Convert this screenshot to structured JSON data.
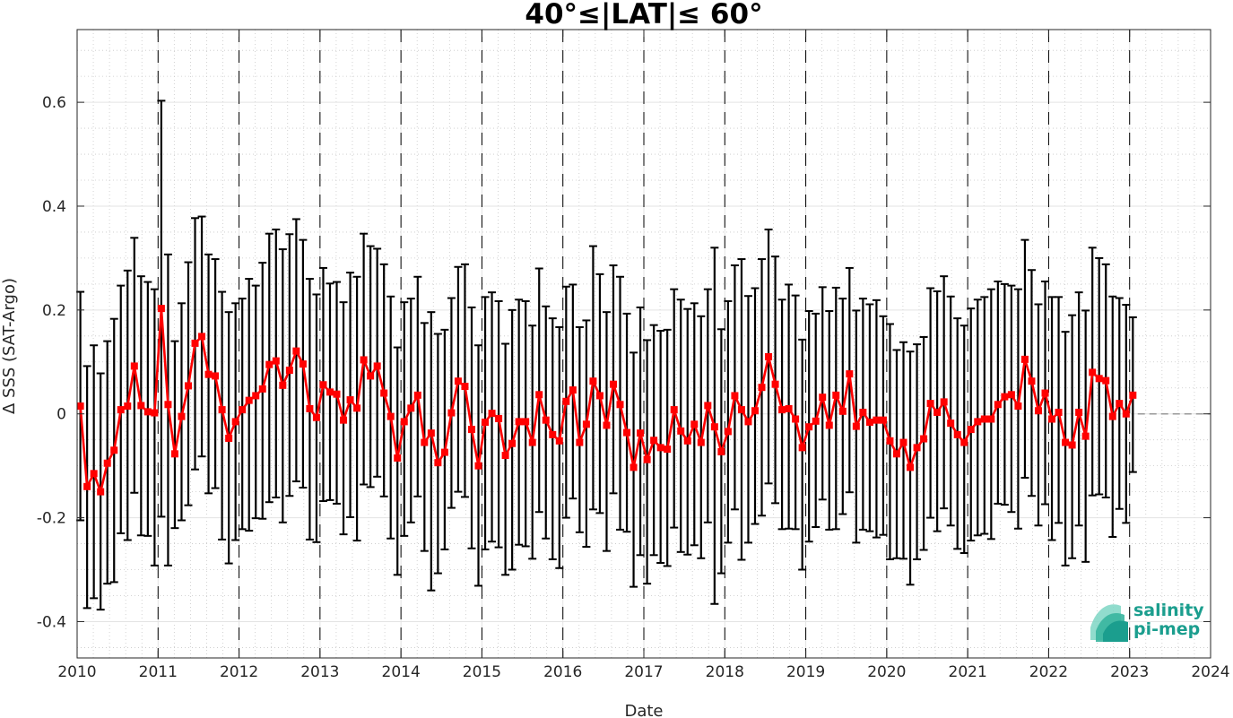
{
  "chart_data": {
    "type": "line",
    "title": "40°≤|LAT|≤ 60°",
    "xlabel": "Date",
    "ylabel": "Δ SSS (SAT-Argo)",
    "xlim": [
      2010,
      2024
    ],
    "ylim": [
      -0.47,
      0.74
    ],
    "x_ticks": [
      2010,
      2011,
      2012,
      2013,
      2014,
      2015,
      2016,
      2017,
      2018,
      2019,
      2020,
      2021,
      2022,
      2023,
      2024
    ],
    "x_tick_labels": [
      "2010",
      "2011",
      "2012",
      "2013",
      "2014",
      "2015",
      "2016",
      "2017",
      "2018",
      "2019",
      "2020",
      "2021",
      "2022",
      "2023",
      "2024"
    ],
    "y_ticks": [
      -0.4,
      -0.2,
      0,
      0.2,
      0.4,
      0.6
    ],
    "y_tick_labels": [
      "-0.4",
      "-0.2",
      "0",
      "0.2",
      "0.4",
      "0.6"
    ],
    "grid": true,
    "minor_grid": true,
    "year_dividers": "dashed vertical lines at each year boundary",
    "zero_reference_dashed_after": 2023.1,
    "series": [
      {
        "color": "#ff0000",
        "marker": "square",
        "errorbar_color": "#000000",
        "dates": [
          "2010-01",
          "2010-02",
          "2010-03",
          "2010-04",
          "2010-05",
          "2010-06",
          "2010-07",
          "2010-08",
          "2010-09",
          "2010-10",
          "2010-11",
          "2010-12",
          "2011-01",
          "2011-02",
          "2011-03",
          "2011-04",
          "2011-05",
          "2011-06",
          "2011-07",
          "2011-08",
          "2011-09",
          "2011-10",
          "2011-11",
          "2011-12",
          "2012-01",
          "2012-02",
          "2012-03",
          "2012-04",
          "2012-05",
          "2012-06",
          "2012-07",
          "2012-08",
          "2012-09",
          "2012-10",
          "2012-11",
          "2012-12",
          "2013-01",
          "2013-02",
          "2013-03",
          "2013-04",
          "2013-05",
          "2013-06",
          "2013-07",
          "2013-08",
          "2013-09",
          "2013-10",
          "2013-11",
          "2013-12",
          "2014-01",
          "2014-02",
          "2014-03",
          "2014-04",
          "2014-05",
          "2014-06",
          "2014-07",
          "2014-08",
          "2014-09",
          "2014-10",
          "2014-11",
          "2014-12",
          "2015-01",
          "2015-02",
          "2015-03",
          "2015-04",
          "2015-05",
          "2015-06",
          "2015-07",
          "2015-08",
          "2015-09",
          "2015-10",
          "2015-11",
          "2015-12",
          "2016-01",
          "2016-02",
          "2016-03",
          "2016-04",
          "2016-05",
          "2016-06",
          "2016-07",
          "2016-08",
          "2016-09",
          "2016-10",
          "2016-11",
          "2016-12",
          "2017-01",
          "2017-02",
          "2017-03",
          "2017-04",
          "2017-05",
          "2017-06",
          "2017-07",
          "2017-08",
          "2017-09",
          "2017-10",
          "2017-11",
          "2017-12",
          "2018-01",
          "2018-02",
          "2018-03",
          "2018-04",
          "2018-05",
          "2018-06",
          "2018-07",
          "2018-08",
          "2018-09",
          "2018-10",
          "2018-11",
          "2018-12",
          "2019-01",
          "2019-02",
          "2019-03",
          "2019-04",
          "2019-05",
          "2019-06",
          "2019-07",
          "2019-08",
          "2019-09",
          "2019-10",
          "2019-11",
          "2019-12",
          "2020-01",
          "2020-02",
          "2020-03",
          "2020-04",
          "2020-05",
          "2020-06",
          "2020-07",
          "2020-08",
          "2020-09",
          "2020-10",
          "2020-11",
          "2020-12",
          "2021-01",
          "2021-02",
          "2021-03",
          "2021-04",
          "2021-05",
          "2021-06",
          "2021-07",
          "2021-08",
          "2021-09",
          "2021-10",
          "2021-11",
          "2021-12",
          "2022-01",
          "2022-02",
          "2022-03",
          "2022-04",
          "2022-05",
          "2022-06",
          "2022-07",
          "2022-08",
          "2022-09",
          "2022-10",
          "2022-11",
          "2022-12",
          "2023-01"
        ],
        "y": [
          0.015,
          -0.14,
          -0.115,
          -0.15,
          -0.095,
          -0.07,
          0.008,
          0.015,
          0.092,
          0.016,
          0.004,
          0.002,
          0.203,
          0.018,
          -0.077,
          -0.005,
          0.054,
          0.136,
          0.149,
          0.076,
          0.073,
          0.008,
          -0.047,
          -0.015,
          0.008,
          0.026,
          0.035,
          0.048,
          0.095,
          0.102,
          0.055,
          0.084,
          0.121,
          0.096,
          0.01,
          -0.007,
          0.056,
          0.042,
          0.038,
          -0.012,
          0.027,
          0.011,
          0.104,
          0.073,
          0.092,
          0.04,
          -0.005,
          -0.085,
          -0.015,
          0.011,
          0.036,
          -0.055,
          -0.037,
          -0.094,
          -0.074,
          0.002,
          0.063,
          0.053,
          -0.03,
          -0.1,
          -0.016,
          0.001,
          -0.009,
          -0.08,
          -0.057,
          -0.015,
          -0.015,
          -0.055,
          0.037,
          -0.012,
          -0.04,
          -0.052,
          0.024,
          0.046,
          -0.055,
          -0.02,
          0.063,
          0.035,
          -0.022,
          0.057,
          0.018,
          -0.036,
          -0.103,
          -0.037,
          -0.088,
          -0.051,
          -0.065,
          -0.068,
          0.008,
          -0.033,
          -0.052,
          -0.02,
          -0.055,
          0.016,
          -0.025,
          -0.073,
          -0.034,
          0.035,
          0.008,
          -0.015,
          0.006,
          0.051,
          0.11,
          0.057,
          0.008,
          0.01,
          -0.01,
          -0.065,
          -0.025,
          -0.014,
          0.032,
          -0.022,
          0.036,
          0.005,
          0.077,
          -0.024,
          0.003,
          -0.016,
          -0.012,
          -0.012,
          -0.052,
          -0.077,
          -0.055,
          -0.103,
          -0.065,
          -0.048,
          0.02,
          0.003,
          0.023,
          -0.018,
          -0.04,
          -0.055,
          -0.03,
          -0.015,
          -0.01,
          -0.01,
          0.018,
          0.033,
          0.037,
          0.015,
          0.105,
          0.063,
          0.006,
          0.04,
          -0.01,
          0.003,
          -0.055,
          -0.06,
          0.003,
          -0.043,
          0.08,
          0.068,
          0.064,
          -0.005,
          0.02,
          0.0,
          0.036
        ],
        "err_upper": [
          0.235,
          0.092,
          0.132,
          0.078,
          0.14,
          0.183,
          0.247,
          0.276,
          0.339,
          0.265,
          0.254,
          0.24,
          0.603,
          0.307,
          0.14,
          0.213,
          0.292,
          0.377,
          0.38,
          0.307,
          0.298,
          0.235,
          0.196,
          0.213,
          0.222,
          0.26,
          0.247,
          0.291,
          0.347,
          0.355,
          0.317,
          0.346,
          0.375,
          0.335,
          0.26,
          0.23,
          0.281,
          0.251,
          0.254,
          0.215,
          0.272,
          0.264,
          0.347,
          0.323,
          0.318,
          0.288,
          0.226,
          0.128,
          0.215,
          0.222,
          0.264,
          0.175,
          0.196,
          0.154,
          0.162,
          0.223,
          0.283,
          0.288,
          0.205,
          0.132,
          0.225,
          0.234,
          0.217,
          0.135,
          0.2,
          0.22,
          0.217,
          0.17,
          0.28,
          0.207,
          0.184,
          0.167,
          0.245,
          0.249,
          0.167,
          0.18,
          0.323,
          0.269,
          0.196,
          0.286,
          0.264,
          0.193,
          0.118,
          0.205,
          0.142,
          0.171,
          0.16,
          0.162,
          0.24,
          0.22,
          0.202,
          0.213,
          0.188,
          0.24,
          0.32,
          0.163,
          0.217,
          0.286,
          0.298,
          0.227,
          0.242,
          0.298,
          0.355,
          0.303,
          0.22,
          0.249,
          0.228,
          0.143,
          0.198,
          0.193,
          0.244,
          0.198,
          0.243,
          0.222,
          0.281,
          0.199,
          0.222,
          0.211,
          0.219,
          0.188,
          0.173,
          0.123,
          0.138,
          0.12,
          0.134,
          0.148,
          0.242,
          0.236,
          0.265,
          0.226,
          0.184,
          0.17,
          0.203,
          0.22,
          0.225,
          0.24,
          0.255,
          0.25,
          0.247,
          0.24,
          0.335,
          0.277,
          0.211,
          0.255,
          0.225,
          0.225,
          0.158,
          0.19,
          0.234,
          0.199,
          0.32,
          0.3,
          0.288,
          0.226,
          0.223,
          0.21,
          0.186
        ],
        "err_lower": [
          -0.205,
          -0.374,
          -0.355,
          -0.377,
          -0.327,
          -0.324,
          -0.23,
          -0.243,
          -0.152,
          -0.234,
          -0.235,
          -0.292,
          -0.198,
          -0.292,
          -0.22,
          -0.205,
          -0.176,
          -0.107,
          -0.082,
          -0.153,
          -0.143,
          -0.242,
          -0.288,
          -0.243,
          -0.222,
          -0.225,
          -0.201,
          -0.202,
          -0.17,
          -0.161,
          -0.209,
          -0.158,
          -0.13,
          -0.142,
          -0.242,
          -0.247,
          -0.168,
          -0.166,
          -0.173,
          -0.232,
          -0.199,
          -0.244,
          -0.136,
          -0.141,
          -0.121,
          -0.159,
          -0.24,
          -0.31,
          -0.235,
          -0.209,
          -0.159,
          -0.264,
          -0.34,
          -0.307,
          -0.261,
          -0.181,
          -0.15,
          -0.16,
          -0.259,
          -0.331,
          -0.261,
          -0.246,
          -0.257,
          -0.31,
          -0.3,
          -0.252,
          -0.255,
          -0.279,
          -0.189,
          -0.24,
          -0.28,
          -0.297,
          -0.2,
          -0.163,
          -0.228,
          -0.256,
          -0.184,
          -0.191,
          -0.264,
          -0.153,
          -0.223,
          -0.227,
          -0.333,
          -0.272,
          -0.327,
          -0.272,
          -0.287,
          -0.293,
          -0.219,
          -0.266,
          -0.271,
          -0.253,
          -0.278,
          -0.209,
          -0.366,
          -0.307,
          -0.248,
          -0.184,
          -0.281,
          -0.248,
          -0.212,
          -0.196,
          -0.134,
          -0.172,
          -0.222,
          -0.221,
          -0.222,
          -0.3,
          -0.246,
          -0.218,
          -0.165,
          -0.223,
          -0.222,
          -0.193,
          -0.151,
          -0.248,
          -0.223,
          -0.226,
          -0.238,
          -0.233,
          -0.28,
          -0.278,
          -0.279,
          -0.329,
          -0.28,
          -0.262,
          -0.2,
          -0.226,
          -0.182,
          -0.215,
          -0.26,
          -0.268,
          -0.244,
          -0.234,
          -0.231,
          -0.241,
          -0.173,
          -0.175,
          -0.189,
          -0.221,
          -0.123,
          -0.158,
          -0.215,
          -0.174,
          -0.243,
          -0.21,
          -0.292,
          -0.278,
          -0.215,
          -0.285,
          -0.157,
          -0.155,
          -0.161,
          -0.237,
          -0.183,
          -0.21,
          -0.112
        ]
      }
    ]
  },
  "logo": {
    "line1": "salinity",
    "line2": "pi-mep",
    "color": "#1b9e8e"
  }
}
